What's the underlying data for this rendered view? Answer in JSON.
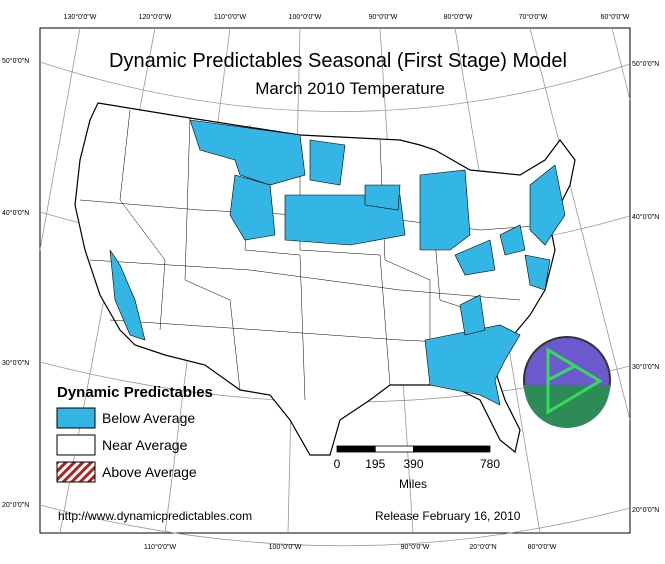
{
  "header": {
    "title": "Dynamic Predictables Seasonal (First Stage) Model",
    "subtitle": "March 2010 Temperature"
  },
  "graticule": {
    "top": [
      "130°0'0\"W",
      "120°0'0\"W",
      "110°0'0\"W",
      "100°0'0\"W",
      "90°0'0\"W",
      "80°0'0\"W",
      "70°0'0\"W",
      "60°0'0\"W"
    ],
    "left": [
      "50°0'0\"N",
      "40°0'0\"N",
      "30°0'0\"N",
      "20°0'0\"N"
    ],
    "right": [
      "50°0'0\"N",
      "40°0'0\"N",
      "30°0'0\"N",
      "20°0'0\"N"
    ],
    "bottom": [
      "110°0'0\"W",
      "100°0'0\"W",
      "90°0'0\"W",
      "20°0'0\"N",
      "80°0'0\"W"
    ]
  },
  "legend": {
    "title": "Dynamic Predictables",
    "items": [
      {
        "label": "Below Average",
        "color": "#33b5e5"
      },
      {
        "label": "Near Average",
        "color": "#ffffff"
      },
      {
        "label": "Above Average",
        "color": "hatched"
      }
    ]
  },
  "scale": {
    "labels": [
      0,
      195,
      390,
      780
    ],
    "unit": "Miles"
  },
  "footer": {
    "url": "http://www.dynamicpredictables.com",
    "release": "Release February 16, 2010"
  }
}
